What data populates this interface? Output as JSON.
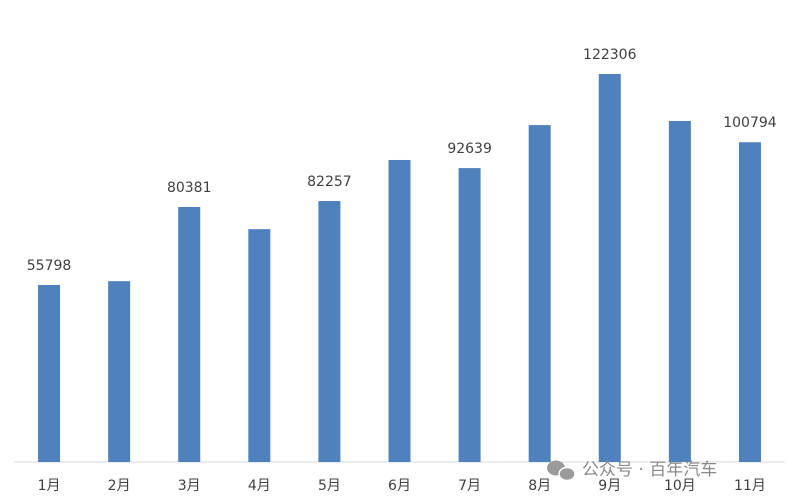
{
  "chart_data": {
    "type": "bar",
    "categories": [
      "1月",
      "2月",
      "3月",
      "4月",
      "5月",
      "6月",
      "7月",
      "8月",
      "9月",
      "10月",
      "11月"
    ],
    "values": [
      55798,
      57000,
      80381,
      73400,
      82257,
      95200,
      92639,
      106200,
      122306,
      107500,
      100794
    ],
    "value_labels": [
      "55798",
      null,
      "80381",
      null,
      "82257",
      null,
      "92639",
      null,
      "122306",
      null,
      "100794"
    ],
    "color": "#4f81bd",
    "ylim": [
      0,
      145000
    ],
    "watermark": "公众号 · 百年汽车"
  }
}
